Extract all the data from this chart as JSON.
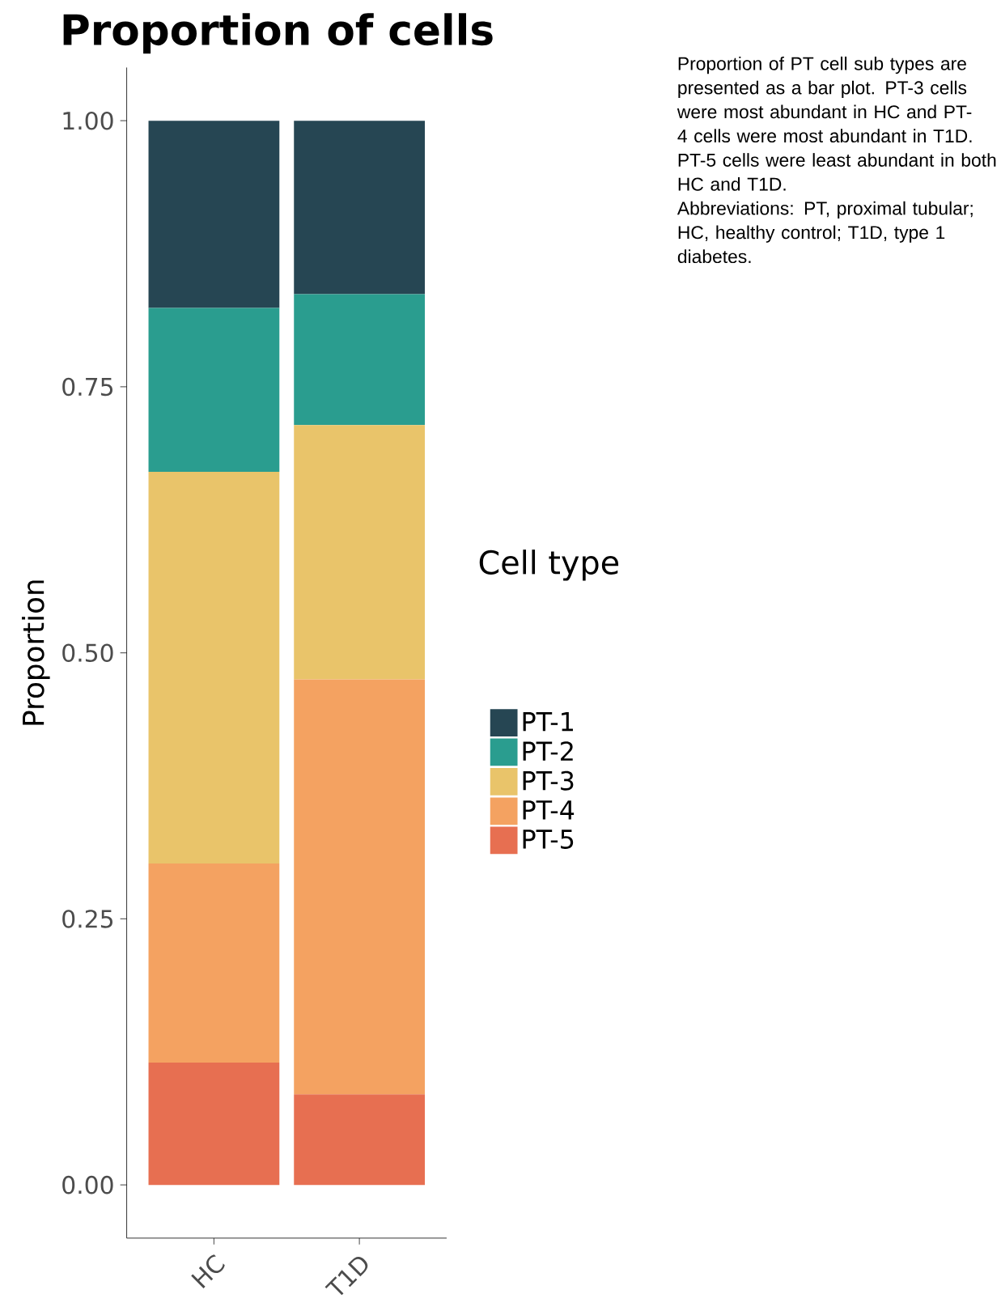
{
  "chart_data": {
    "type": "bar",
    "title": "Proportion of cells",
    "ylabel": "Proportion",
    "legend_title": "Cell type",
    "categories": [
      "HC",
      "T1D"
    ],
    "stacked": true,
    "series": [
      {
        "name": "PT-5",
        "color": "#e76f51",
        "values": [
          0.115,
          0.085
        ]
      },
      {
        "name": "PT-4",
        "color": "#f4a261",
        "values": [
          0.187,
          0.39
        ]
      },
      {
        "name": "PT-3",
        "color": "#e9c46a",
        "values": [
          0.368,
          0.239
        ]
      },
      {
        "name": "PT-2",
        "color": "#2a9d8f",
        "values": [
          0.154,
          0.123
        ]
      },
      {
        "name": "PT-1",
        "color": "#264653",
        "values": [
          0.176,
          0.163
        ]
      }
    ],
    "ylim": [
      -0.05,
      1.05
    ],
    "yticks": [
      {
        "value": 0,
        "label": "0.00"
      },
      {
        "value": 0.25,
        "label": "0.25"
      },
      {
        "value": 0.5,
        "label": "0.50"
      },
      {
        "value": 0.75,
        "label": "0.75"
      },
      {
        "value": 1,
        "label": "1.00"
      }
    ],
    "grid": false,
    "legend": "right",
    "annotations": [
      "Proportion of PT cell sub types are presented as a bar plot. PT-3 cells were most abundant in HC and PT-4 cells were most abundant in T1D. PT-5 cells were least abundant in both HC and T1D.",
      "Abbreviations: PT, proximal tubular; HC, healthy control; T1D, type 1 diabetes."
    ]
  }
}
